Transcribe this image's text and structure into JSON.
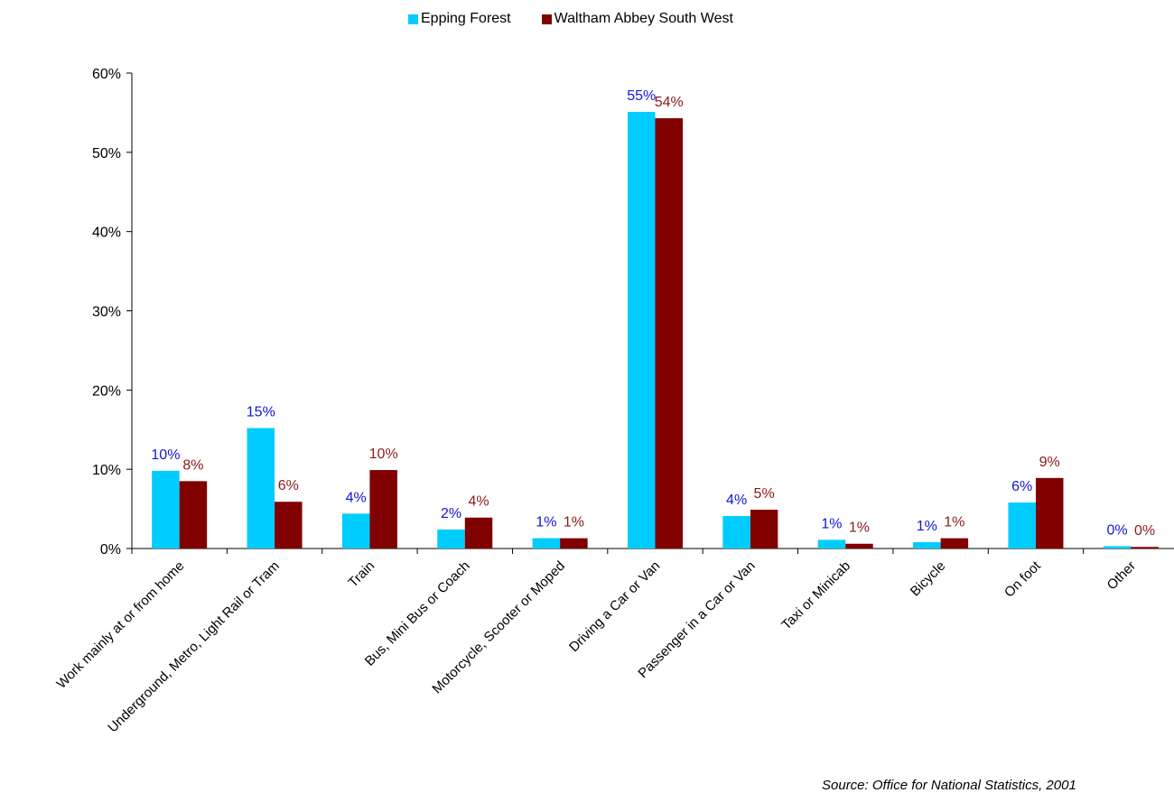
{
  "colors": {
    "series_0": "#00ccff",
    "series_1": "#800000",
    "label_0": "#1414d6",
    "label_1": "#8b1a1a"
  },
  "chart_data": {
    "type": "bar",
    "title": "",
    "xlabel": "",
    "ylabel": "",
    "ylim": [
      0,
      60
    ],
    "yticks": [
      "0%",
      "10%",
      "20%",
      "30%",
      "40%",
      "50%",
      "60%"
    ],
    "grid": false,
    "legend_position": "top-center",
    "categories": [
      "Work mainly at or from home",
      "Underground, Metro, Light Rail or Tram",
      "Train",
      "Bus, Mini Bus or Coach",
      "Motorcycle, Scooter or Moped",
      "Driving a Car or Van",
      "Passenger in a Car or Van",
      "Taxi or Minicab",
      "Bicycle",
      "On foot",
      "Other"
    ],
    "series": [
      {
        "name": "Epping Forest",
        "values": [
          9.8,
          15.2,
          4.4,
          2.4,
          1.3,
          55.1,
          4.1,
          1.1,
          0.8,
          5.8,
          0.3
        ],
        "labels": [
          "10%",
          "15%",
          "4%",
          "2%",
          "1%",
          "55%",
          "4%",
          "1%",
          "1%",
          "6%",
          "0%"
        ]
      },
      {
        "name": "Waltham Abbey South West",
        "values": [
          8.5,
          5.9,
          9.9,
          3.9,
          1.3,
          54.3,
          4.9,
          0.6,
          1.3,
          8.9,
          0.2
        ],
        "labels": [
          "8%",
          "6%",
          "10%",
          "4%",
          "1%",
          "54%",
          "5%",
          "1%",
          "1%",
          "9%",
          "0%"
        ]
      }
    ],
    "source": "Source: Office for National Statistics, 2001"
  }
}
